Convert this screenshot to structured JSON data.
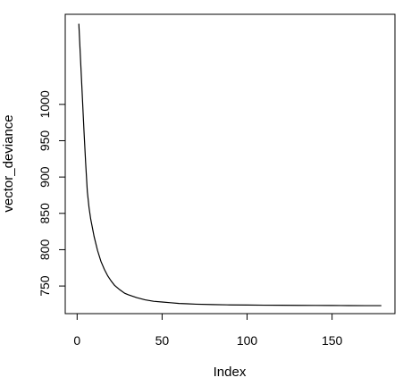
{
  "chart_data": {
    "type": "line",
    "title": "",
    "xlabel": "Index",
    "ylabel": "vector_deviance",
    "xlim": [
      -7,
      187
    ],
    "ylim": [
      712,
      1124
    ],
    "x_ticks": [
      0,
      50,
      100,
      150
    ],
    "x_tick_labels": [
      "0",
      "50",
      "100",
      "150"
    ],
    "y_ticks": [
      750,
      800,
      850,
      900,
      950,
      1000
    ],
    "y_tick_labels": [
      "750",
      "800",
      "850",
      "900",
      "950",
      "1000"
    ],
    "grid": false,
    "legend": "none",
    "line_color": "#000000",
    "series": [
      {
        "x": [
          1,
          2,
          3,
          4,
          5,
          6,
          7,
          8,
          10,
          12,
          14,
          16,
          18,
          20,
          22,
          25,
          28,
          30,
          35,
          40,
          45,
          50,
          55,
          60,
          65,
          70,
          80,
          90,
          100,
          110,
          120,
          130,
          140,
          150,
          160,
          170,
          179
        ],
        "values": [
          1111,
          1062,
          1014,
          965,
          920,
          880,
          858,
          842,
          818,
          799,
          784,
          773,
          764,
          757,
          751,
          745,
          740,
          738,
          734,
          731,
          729,
          728,
          727,
          726,
          725.5,
          725,
          724.5,
          724,
          723.8,
          723.6,
          723.5,
          723.4,
          723.3,
          723.2,
          723.1,
          723,
          723
        ]
      }
    ]
  }
}
